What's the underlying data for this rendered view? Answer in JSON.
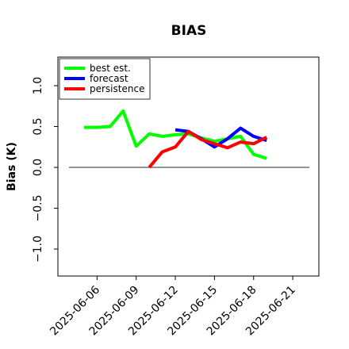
{
  "chart_data": {
    "type": "line",
    "title": "BIAS",
    "ylabel": "Bias (K)",
    "x": [
      "2025-06-05",
      "2025-06-06",
      "2025-06-07",
      "2025-06-08",
      "2025-06-09",
      "2025-06-10",
      "2025-06-11",
      "2025-06-12",
      "2025-06-13",
      "2025-06-14",
      "2025-06-15",
      "2025-06-16",
      "2025-06-17",
      "2025-06-18",
      "2025-06-19"
    ],
    "series": [
      {
        "name": "best est.",
        "color": "#00ff00",
        "values": [
          0.49,
          0.49,
          0.5,
          0.69,
          0.26,
          0.41,
          0.38,
          0.4,
          0.41,
          0.36,
          0.32,
          0.35,
          0.38,
          0.16,
          0.11
        ]
      },
      {
        "name": "forecast",
        "color": "#0000ff",
        "values": [
          null,
          null,
          null,
          null,
          null,
          null,
          null,
          0.46,
          0.44,
          0.35,
          0.25,
          0.35,
          0.48,
          0.38,
          0.33
        ]
      },
      {
        "name": "persistence",
        "color": "#ff0000",
        "values": [
          null,
          null,
          null,
          null,
          null,
          0.0,
          0.19,
          0.25,
          0.44,
          0.34,
          0.29,
          0.24,
          0.31,
          0.29,
          0.37
        ]
      }
    ],
    "xlim": [
      "2025-06-03",
      "2025-06-23"
    ],
    "xticks": [
      "2025-06-06",
      "2025-06-09",
      "2025-06-12",
      "2025-06-15",
      "2025-06-18",
      "2025-06-21"
    ],
    "xtick_label_colors": [
      "#000000",
      "#000000",
      "#228b22",
      "#000000",
      "#000000",
      "#000000"
    ],
    "ylim": [
      -1.33,
      1.35
    ],
    "yticks": [
      {
        "value": -1,
        "label": "−1.0"
      },
      {
        "value": -0.5,
        "label": "−0.5"
      },
      {
        "value": 0,
        "label": "0.0"
      },
      0.5,
      {
        "value": 1,
        "label": "1.0"
      }
    ],
    "hline": 0,
    "hline_color": "#555555",
    "legend": "upper left"
  }
}
